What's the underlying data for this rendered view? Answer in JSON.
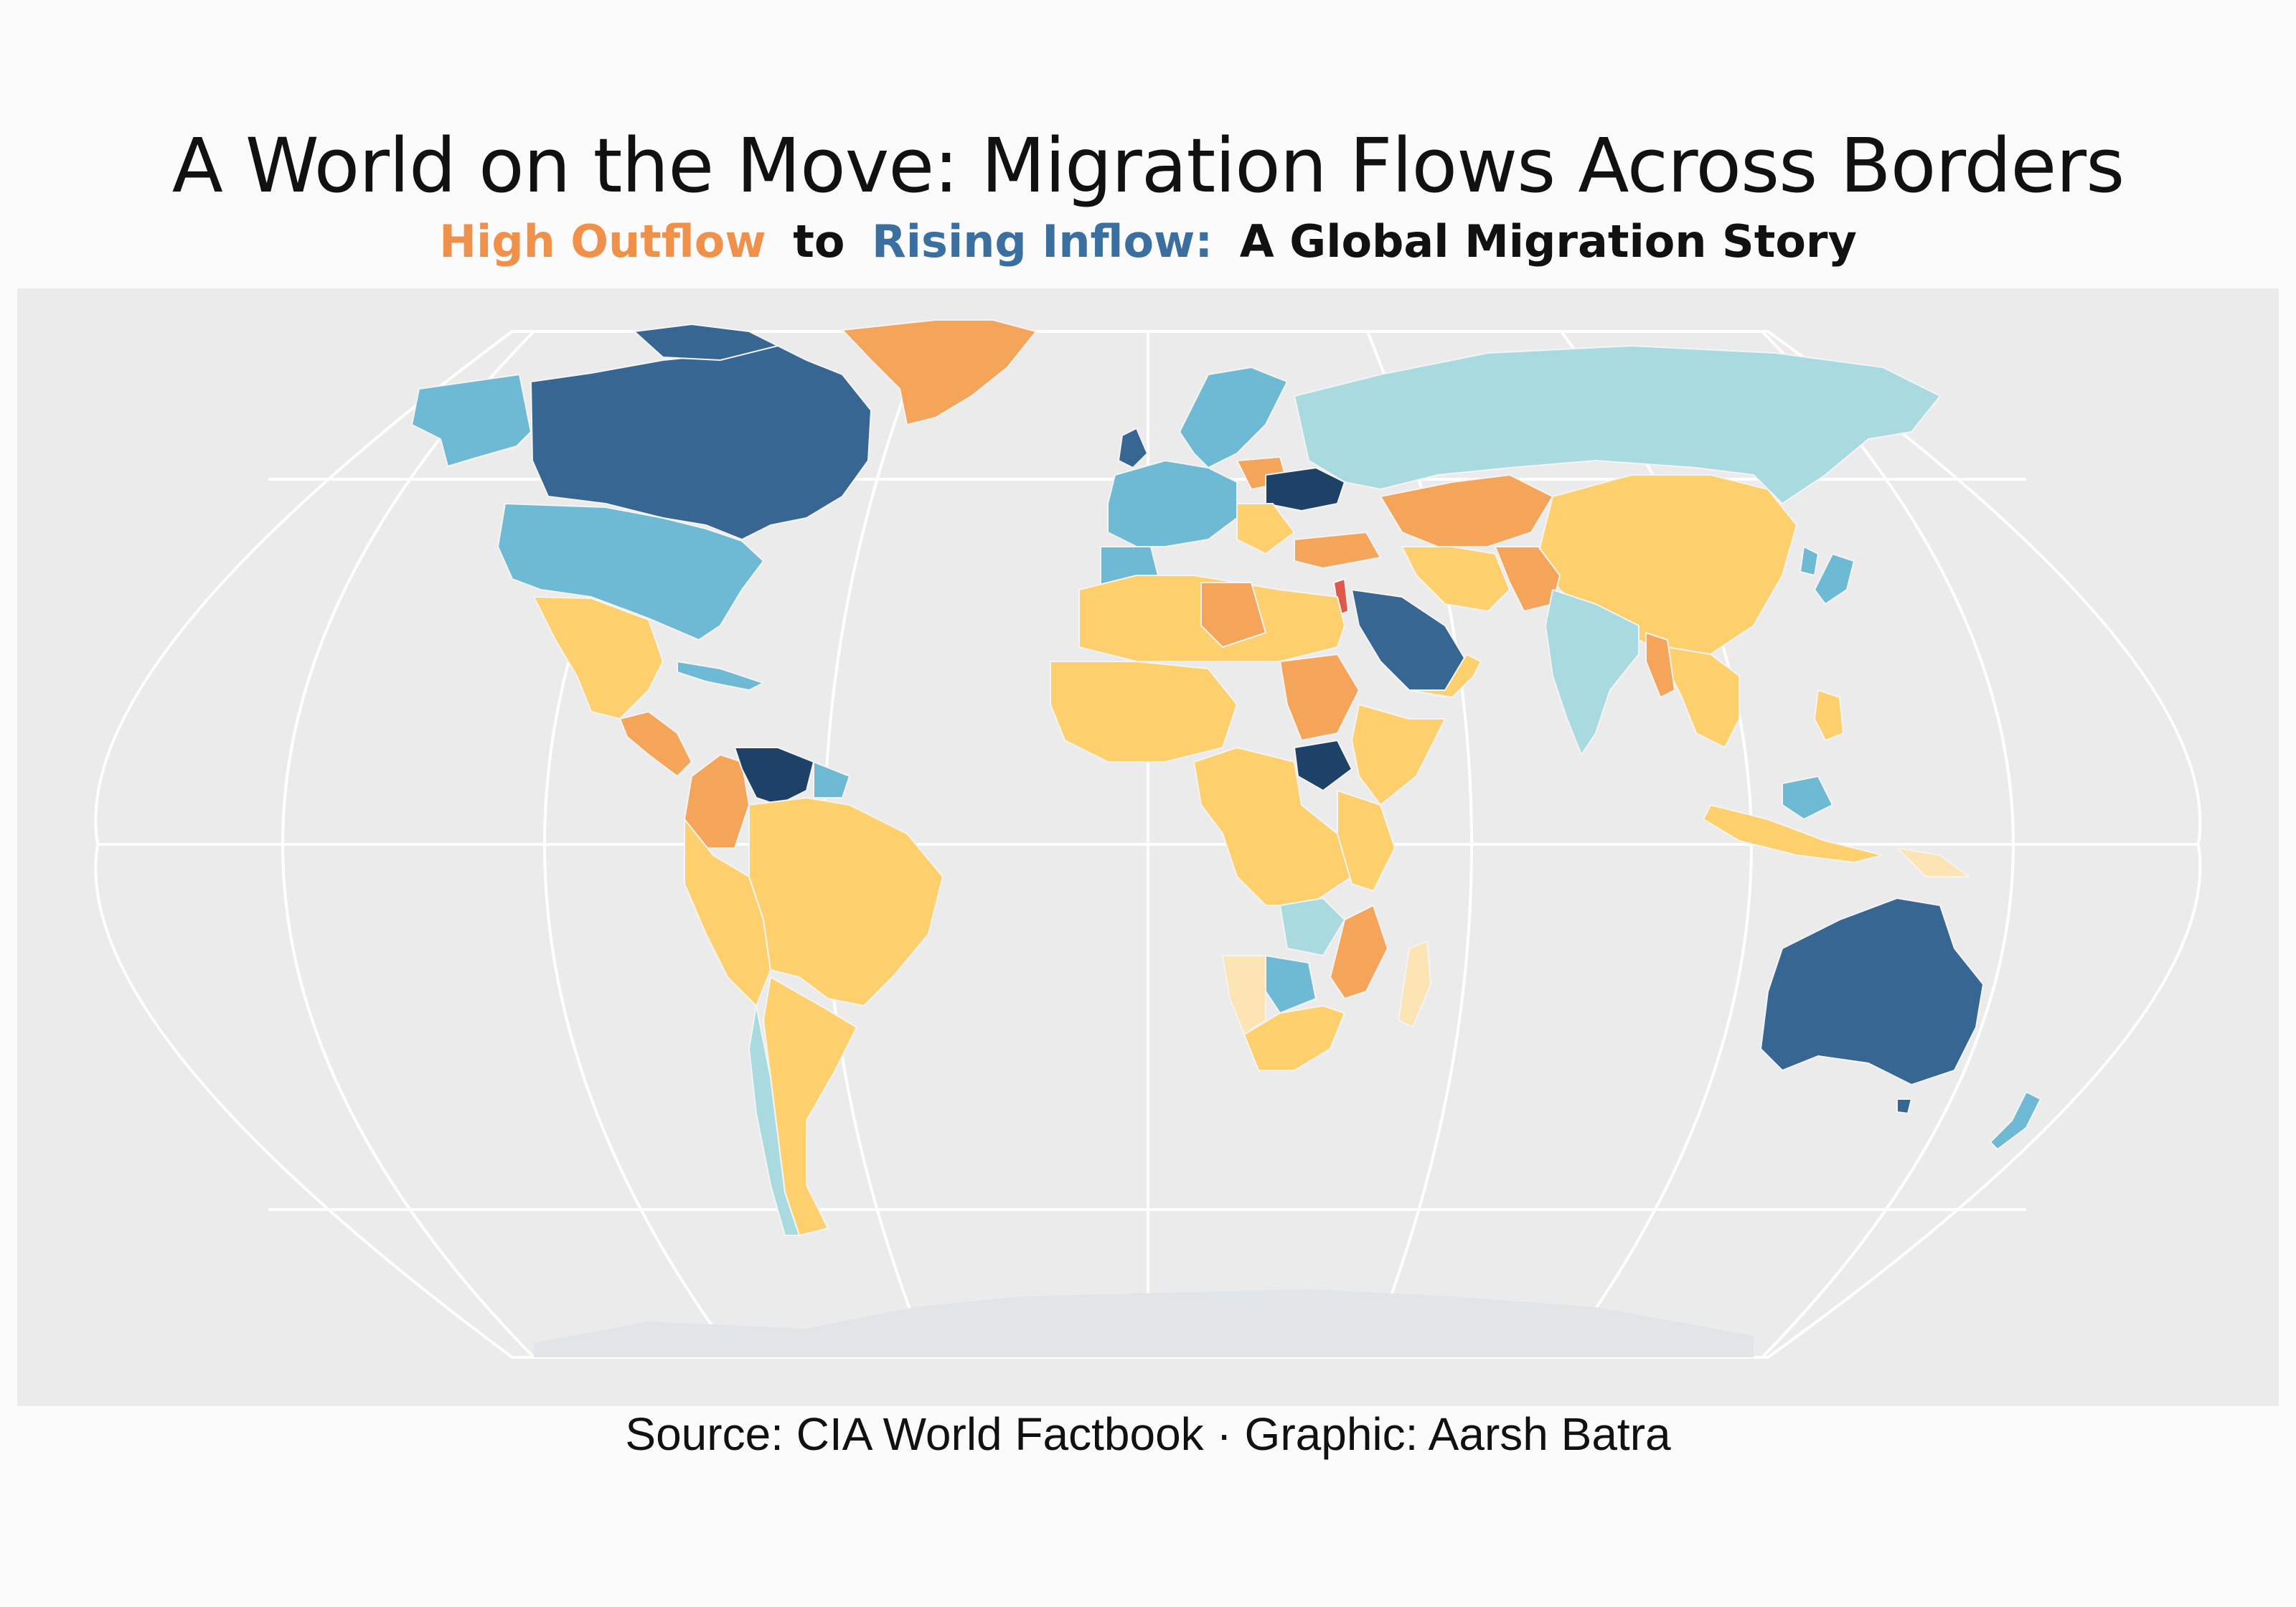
{
  "title": "A World on the Move: Migration Flows Across Borders",
  "subtitle": {
    "part1": "High Outflow",
    "part2": "to",
    "part3": "Rising Inflow:",
    "part4": "A Global Migration Story"
  },
  "caption": "Source: CIA World Factbook · Graphic: Aarsh Batra",
  "colors": {
    "panel_bg": "#ebebeb",
    "graticule": "#ffffff",
    "outflow_label": "#f0914b",
    "inflow_label": "#3b6fa0",
    "very_high_outflow": "#e0584a",
    "high_outflow": "#f5a55a",
    "moderate_outflow": "#fdd06d",
    "low_outflow": "#fde4b4",
    "low_inflow": "#a9dadf",
    "moderate_inflow": "#6eb9d4",
    "high_inflow": "#376693",
    "very_high_inflow": "#1e4168",
    "antarctica": "#e2e5e8",
    "no_data": "#e6e6e6"
  },
  "map_data": {
    "projection": "Robinson",
    "regions": [
      {
        "name": "Canada",
        "category": "high_inflow"
      },
      {
        "name": "United States",
        "category": "moderate_inflow"
      },
      {
        "name": "Alaska",
        "category": "moderate_inflow"
      },
      {
        "name": "Greenland",
        "category": "high_outflow"
      },
      {
        "name": "Mexico",
        "category": "moderate_outflow"
      },
      {
        "name": "Central America",
        "category": "high_outflow"
      },
      {
        "name": "Venezuela",
        "category": "very_high_inflow"
      },
      {
        "name": "Colombia",
        "category": "high_outflow"
      },
      {
        "name": "Brazil",
        "category": "moderate_outflow"
      },
      {
        "name": "Andean South America",
        "category": "moderate_outflow"
      },
      {
        "name": "Chile",
        "category": "low_inflow"
      },
      {
        "name": "Argentina",
        "category": "moderate_outflow"
      },
      {
        "name": "Western Europe",
        "category": "moderate_inflow"
      },
      {
        "name": "Scandinavia",
        "category": "moderate_inflow"
      },
      {
        "name": "Poland",
        "category": "high_outflow"
      },
      {
        "name": "Ukraine",
        "category": "very_high_inflow"
      },
      {
        "name": "Russia",
        "category": "low_inflow"
      },
      {
        "name": "North Africa",
        "category": "moderate_outflow"
      },
      {
        "name": "Libya",
        "category": "high_outflow"
      },
      {
        "name": "Sudan",
        "category": "high_outflow"
      },
      {
        "name": "South Sudan",
        "category": "very_high_inflow"
      },
      {
        "name": "West Africa",
        "category": "moderate_outflow"
      },
      {
        "name": "Central Africa",
        "category": "moderate_outflow"
      },
      {
        "name": "East Africa",
        "category": "moderate_outflow"
      },
      {
        "name": "Zambia",
        "category": "low_inflow"
      },
      {
        "name": "Botswana",
        "category": "moderate_inflow"
      },
      {
        "name": "Namibia",
        "category": "low_outflow"
      },
      {
        "name": "Mozambique",
        "category": "high_outflow"
      },
      {
        "name": "South Africa",
        "category": "moderate_outflow"
      },
      {
        "name": "Madagascar",
        "category": "low_outflow"
      },
      {
        "name": "Saudi Arabia",
        "category": "high_inflow"
      },
      {
        "name": "Israel",
        "category": "very_high_outflow"
      },
      {
        "name": "Iran",
        "category": "moderate_outflow"
      },
      {
        "name": "Central Asia",
        "category": "high_outflow"
      },
      {
        "name": "China",
        "category": "moderate_outflow"
      },
      {
        "name": "India",
        "category": "low_inflow"
      },
      {
        "name": "Southeast Asia",
        "category": "moderate_outflow"
      },
      {
        "name": "Indonesia",
        "category": "moderate_outflow"
      },
      {
        "name": "Papua New Guinea",
        "category": "low_outflow"
      },
      {
        "name": "Australia",
        "category": "high_inflow"
      },
      {
        "name": "New Zealand",
        "category": "moderate_inflow"
      },
      {
        "name": "Japan",
        "category": "moderate_inflow"
      },
      {
        "name": "Antarctica",
        "category": "antarctica"
      }
    ]
  }
}
